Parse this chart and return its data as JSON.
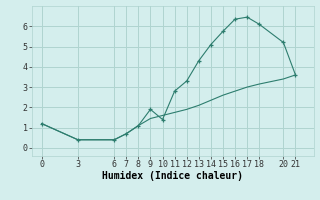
{
  "xlabel": "Humidex (Indice chaleur)",
  "bg_color": "#d4eeed",
  "line_color": "#2d7d6e",
  "grid_color": "#afd4d0",
  "series1_x": [
    0,
    3,
    6,
    7,
    8,
    9,
    10,
    11,
    12,
    13,
    14,
    15,
    16,
    17,
    18,
    20,
    21
  ],
  "series1_y": [
    1.2,
    0.4,
    0.4,
    0.7,
    1.1,
    1.9,
    1.4,
    2.8,
    3.3,
    4.3,
    5.1,
    5.75,
    6.35,
    6.45,
    6.1,
    5.2,
    3.6
  ],
  "series2_x": [
    0,
    3,
    6,
    7,
    8,
    9,
    10,
    11,
    12,
    13,
    14,
    15,
    16,
    17,
    18,
    20,
    21
  ],
  "series2_y": [
    1.2,
    0.4,
    0.4,
    0.7,
    1.1,
    1.45,
    1.6,
    1.75,
    1.9,
    2.1,
    2.35,
    2.6,
    2.8,
    3.0,
    3.15,
    3.4,
    3.6
  ],
  "xticks": [
    0,
    3,
    6,
    7,
    8,
    9,
    10,
    11,
    12,
    13,
    14,
    15,
    16,
    17,
    18,
    20,
    21
  ],
  "yticks": [
    0,
    1,
    2,
    3,
    4,
    5,
    6
  ],
  "xlim": [
    -0.8,
    22.5
  ],
  "ylim": [
    -0.4,
    7.0
  ],
  "tick_fontsize": 6,
  "xlabel_fontsize": 7,
  "marker": "+"
}
